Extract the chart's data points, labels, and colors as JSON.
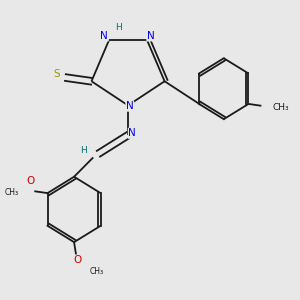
{
  "bg_color": "#e8e8e8",
  "bond_color": "#1a1a1a",
  "N_color": "#0000ee",
  "S_color": "#999900",
  "O_color": "#cc0000",
  "H_color": "#007070",
  "font_size": 7.5,
  "small_font": 6.5,
  "lw": 1.3,
  "xlim": [
    0,
    10
  ],
  "ylim": [
    0,
    10
  ]
}
